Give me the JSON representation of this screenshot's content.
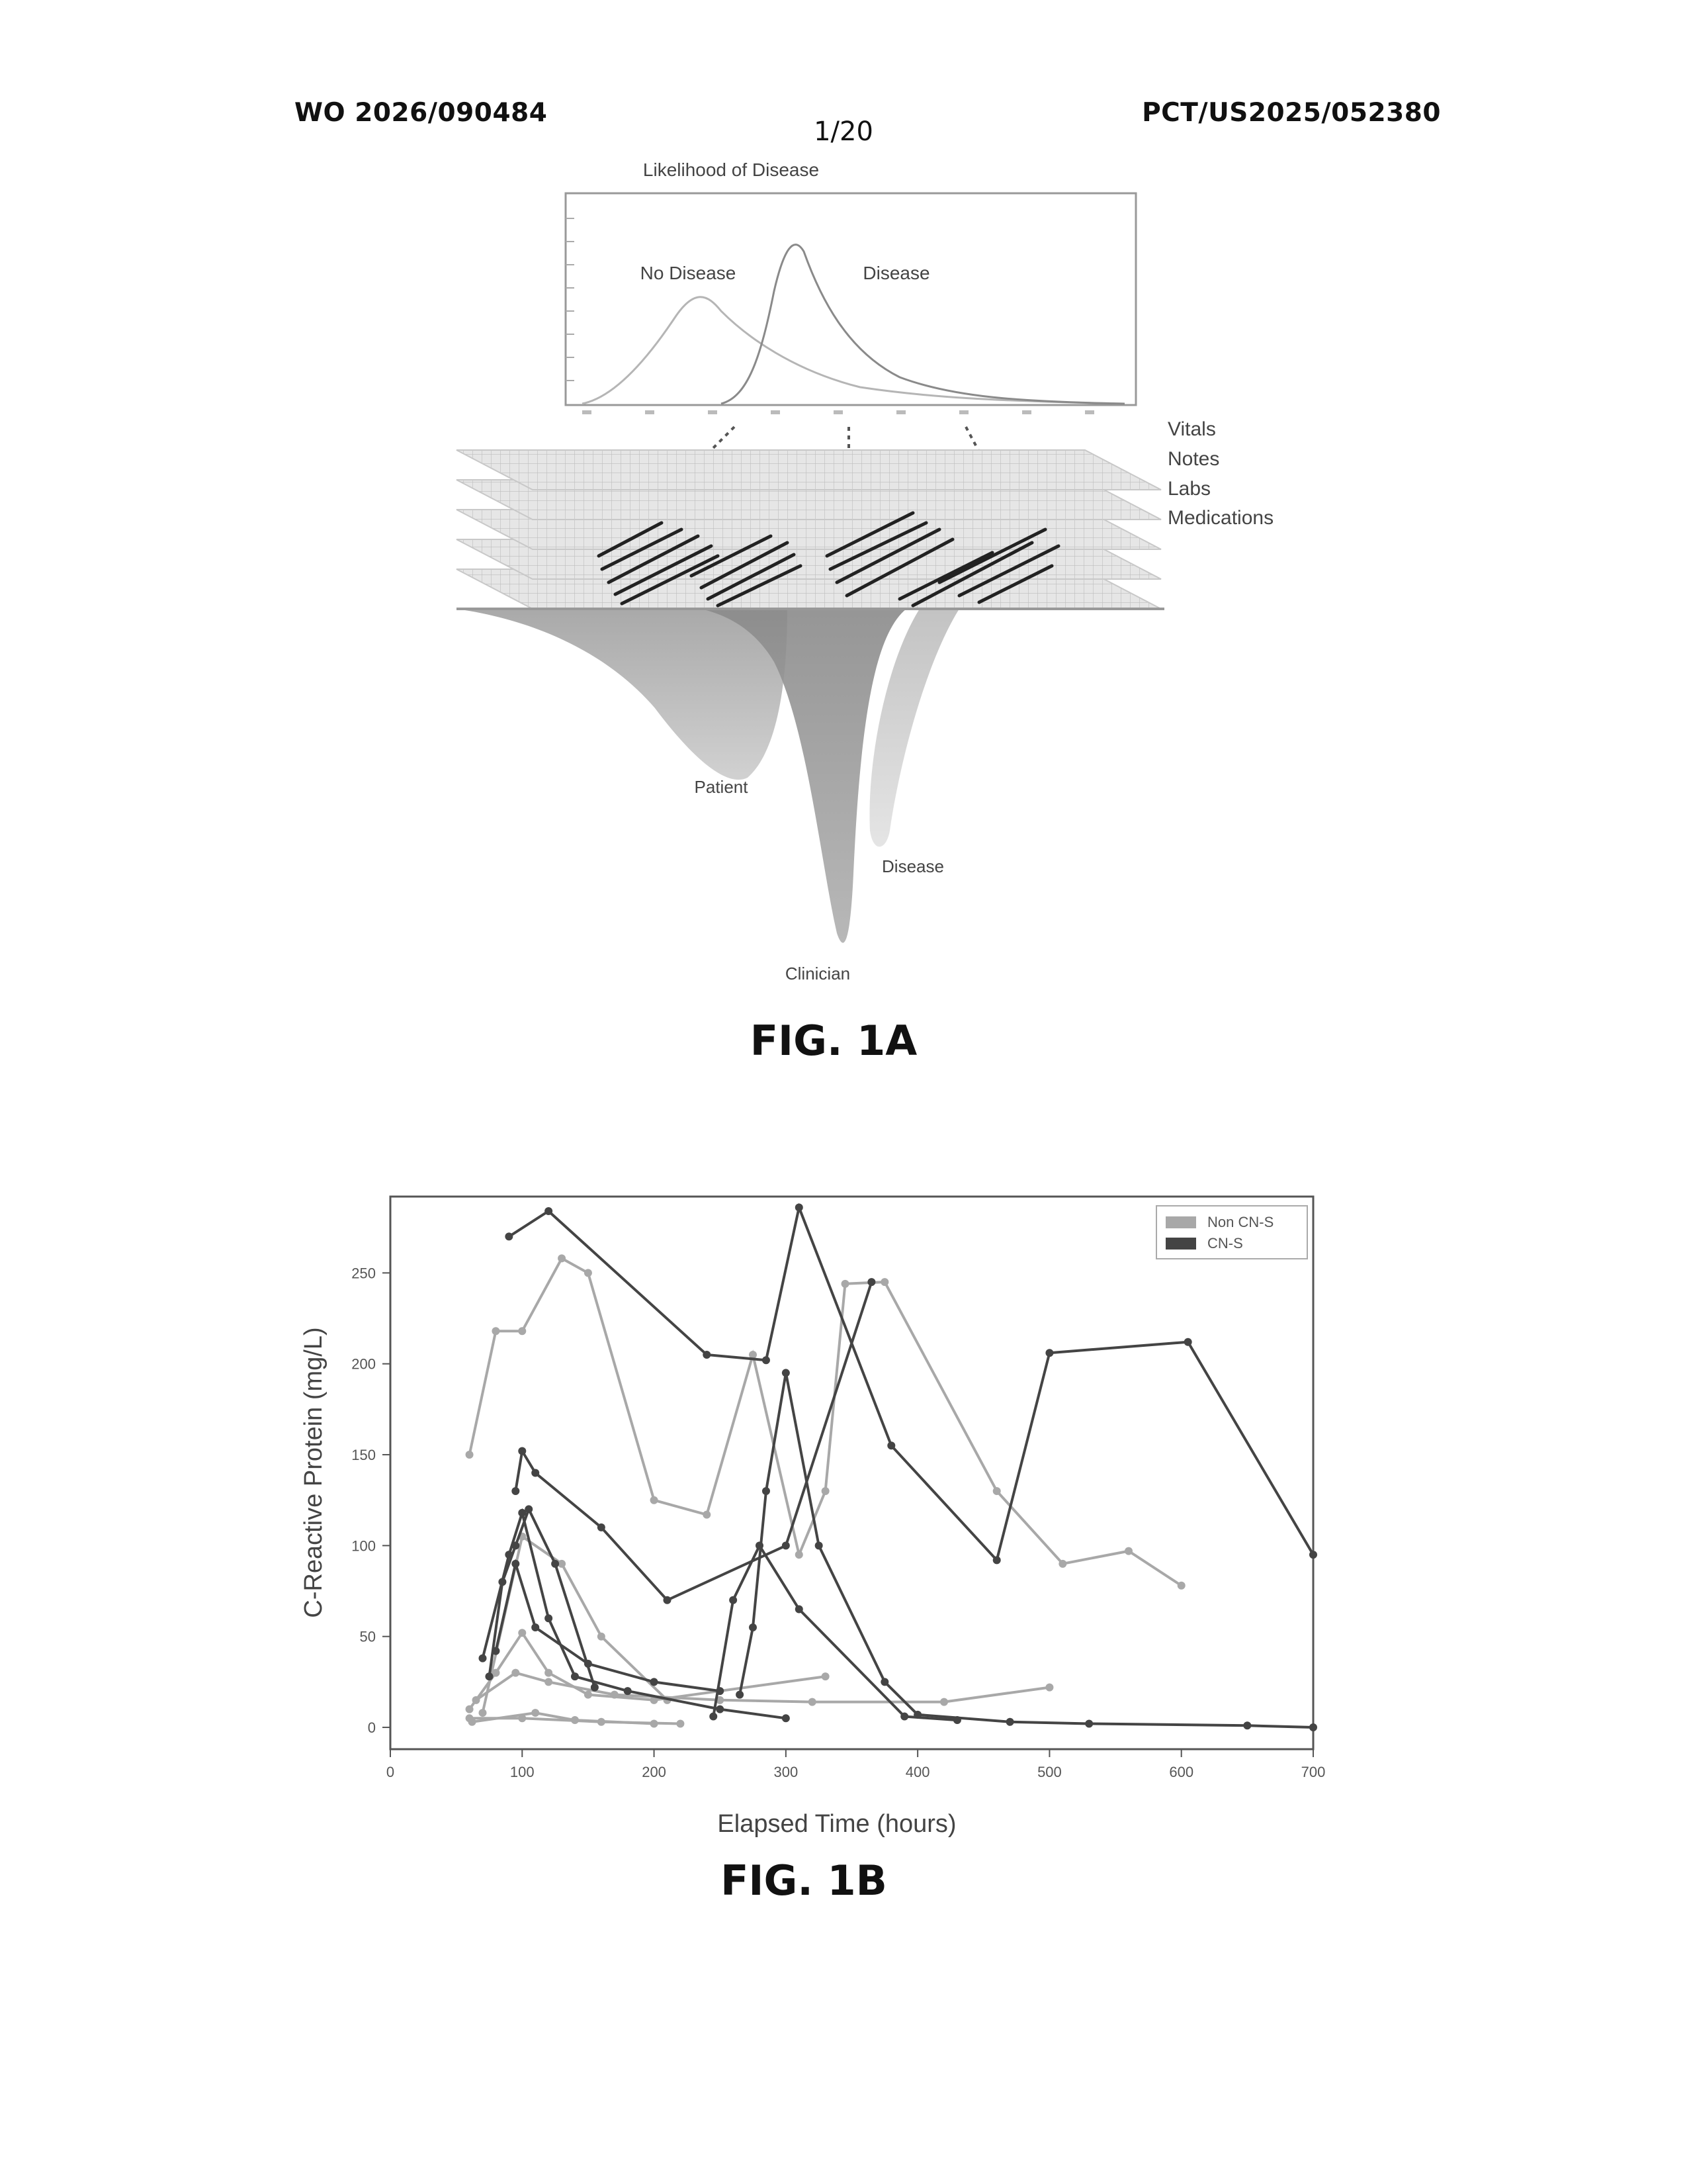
{
  "header": {
    "left": "WO 2026/090484",
    "right": "PCT/US2025/052380",
    "page": "1/20"
  },
  "fig1a": {
    "label": "FIG. 1A",
    "top_chart_title": "Likelihood of Disease",
    "curve_labels": {
      "no_disease": "No Disease",
      "disease": "Disease"
    },
    "layers": [
      "Vitals",
      "Notes",
      "Labs",
      "Medications"
    ],
    "bottom_labels": {
      "patient": "Patient",
      "clinician": "Clinician",
      "disease": "Disease"
    }
  },
  "fig1b": {
    "label": "FIG. 1B",
    "colors": {
      "non_cns": "#a8a8a8",
      "cns": "#444444"
    },
    "chart_data": {
      "type": "line",
      "xlabel": "Elapsed Time (hours)",
      "ylabel": "C-Reactive Protein (mg/L)",
      "xlim": [
        0,
        700
      ],
      "ylim": [
        -12,
        292
      ],
      "xticks": [
        0,
        100,
        200,
        300,
        400,
        500,
        600,
        700
      ],
      "yticks": [
        0,
        50,
        100,
        150,
        200,
        250
      ],
      "legend": {
        "position": "top-right",
        "entries": [
          "Non CN-S",
          "CN-S"
        ]
      },
      "series": [
        {
          "group": "CN-S",
          "points": [
            [
              90,
              270
            ],
            [
              120,
              284
            ],
            [
              240,
              205
            ],
            [
              285,
              202
            ],
            [
              310,
              286
            ],
            [
              380,
              155
            ],
            [
              460,
              92
            ],
            [
              500,
              206
            ],
            [
              605,
              212
            ],
            [
              700,
              95
            ]
          ]
        },
        {
          "group": "CN-S",
          "points": [
            [
              95,
              130
            ],
            [
              100,
              152
            ],
            [
              110,
              140
            ],
            [
              160,
              110
            ],
            [
              210,
              70
            ],
            [
              300,
              100
            ],
            [
              365,
              245
            ]
          ]
        },
        {
          "group": "CN-S",
          "points": [
            [
              70,
              38
            ],
            [
              90,
              95
            ],
            [
              100,
              118
            ],
            [
              120,
              60
            ],
            [
              140,
              28
            ],
            [
              180,
              20
            ],
            [
              250,
              10
            ],
            [
              300,
              5
            ]
          ]
        },
        {
          "group": "CN-S",
          "points": [
            [
              75,
              28
            ],
            [
              85,
              80
            ],
            [
              95,
              100
            ],
            [
              105,
              120
            ],
            [
              125,
              90
            ],
            [
              155,
              22
            ]
          ]
        },
        {
          "group": "CN-S",
          "points": [
            [
              80,
              42
            ],
            [
              95,
              90
            ],
            [
              110,
              55
            ],
            [
              150,
              35
            ],
            [
              200,
              25
            ],
            [
              250,
              20
            ]
          ]
        },
        {
          "group": "CN-S",
          "points": [
            [
              265,
              18
            ],
            [
              275,
              55
            ],
            [
              285,
              130
            ],
            [
              300,
              195
            ],
            [
              325,
              100
            ],
            [
              375,
              25
            ],
            [
              400,
              7
            ],
            [
              470,
              3
            ],
            [
              530,
              2
            ],
            [
              650,
              1
            ],
            [
              700,
              0
            ]
          ]
        },
        {
          "group": "CN-S",
          "points": [
            [
              245,
              6
            ],
            [
              260,
              70
            ],
            [
              280,
              100
            ],
            [
              310,
              65
            ],
            [
              390,
              6
            ],
            [
              430,
              4
            ]
          ]
        },
        {
          "group": "Non CN-S",
          "points": [
            [
              60,
              150
            ],
            [
              80,
              218
            ],
            [
              100,
              218
            ],
            [
              130,
              258
            ],
            [
              150,
              250
            ],
            [
              200,
              125
            ],
            [
              240,
              117
            ],
            [
              275,
              205
            ],
            [
              310,
              95
            ],
            [
              330,
              130
            ],
            [
              345,
              244
            ],
            [
              375,
              245
            ],
            [
              460,
              130
            ],
            [
              510,
              90
            ],
            [
              560,
              97
            ],
            [
              600,
              78
            ]
          ]
        },
        {
          "group": "Non CN-S",
          "points": [
            [
              60,
              10
            ],
            [
              80,
              30
            ],
            [
              100,
              52
            ],
            [
              120,
              30
            ],
            [
              150,
              18
            ],
            [
              200,
              15
            ],
            [
              330,
              28
            ]
          ]
        },
        {
          "group": "Non CN-S",
          "points": [
            [
              60,
              5
            ],
            [
              100,
              5
            ],
            [
              160,
              3
            ],
            [
              220,
              2
            ]
          ]
        },
        {
          "group": "Non CN-S",
          "points": [
            [
              65,
              15
            ],
            [
              95,
              30
            ],
            [
              120,
              25
            ],
            [
              170,
              18
            ],
            [
              250,
              15
            ],
            [
              320,
              14
            ],
            [
              420,
              14
            ],
            [
              500,
              22
            ]
          ]
        },
        {
          "group": "Non CN-S",
          "points": [
            [
              70,
              8
            ],
            [
              100,
              105
            ],
            [
              130,
              90
            ],
            [
              160,
              50
            ],
            [
              210,
              15
            ]
          ]
        },
        {
          "group": "Non CN-S",
          "points": [
            [
              62,
              3
            ],
            [
              110,
              8
            ],
            [
              140,
              4
            ],
            [
              200,
              2
            ]
          ]
        }
      ]
    }
  }
}
